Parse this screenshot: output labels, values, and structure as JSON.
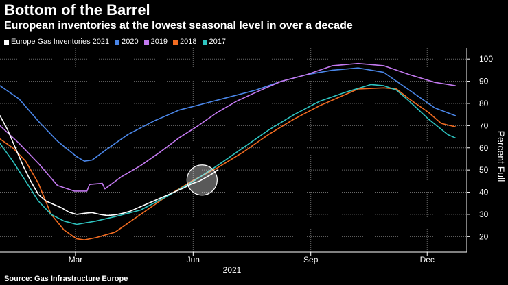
{
  "chart_data": {
    "type": "line",
    "title": "Bottom of the Barrel",
    "subtitle": "European inventories at the lowest seasonal level in over a decade",
    "xlabel": "2021",
    "ylabel": "Percent Full",
    "ylim": [
      13,
      105
    ],
    "xlim": [
      0,
      365
    ],
    "y_ticks": [
      20,
      30,
      40,
      50,
      60,
      70,
      80,
      90,
      100
    ],
    "x_ticks": [
      {
        "label": "Mar",
        "day": 59
      },
      {
        "label": "Jun",
        "day": 151
      },
      {
        "label": "Sep",
        "day": 243
      },
      {
        "label": "Dec",
        "day": 334
      }
    ],
    "source": "Source: Gas Infrastructure Europe",
    "annotation": {
      "type": "circle",
      "day": 158,
      "value": 45.5
    },
    "series": [
      {
        "name": "Europe Gas Inventories 2021",
        "color": "#ffffff",
        "points": [
          [
            0,
            74.5
          ],
          [
            6,
            68
          ],
          [
            12,
            60
          ],
          [
            18,
            52
          ],
          [
            24,
            45
          ],
          [
            30,
            39
          ],
          [
            36,
            36
          ],
          [
            42,
            34.5
          ],
          [
            48,
            33
          ],
          [
            54,
            31
          ],
          [
            60,
            30
          ],
          [
            66,
            30.5
          ],
          [
            72,
            30.8
          ],
          [
            78,
            30
          ],
          [
            84,
            29.5
          ],
          [
            90,
            29.8
          ],
          [
            96,
            30.5
          ],
          [
            102,
            31.5
          ],
          [
            108,
            33
          ],
          [
            114,
            34.5
          ],
          [
            120,
            36
          ],
          [
            126,
            37.5
          ],
          [
            132,
            39
          ],
          [
            138,
            40.5
          ],
          [
            144,
            42
          ],
          [
            150,
            43.8
          ],
          [
            156,
            45
          ],
          [
            162,
            47
          ],
          [
            168,
            49
          ],
          [
            170,
            50
          ]
        ]
      },
      {
        "name": "2020",
        "color": "#4a86e8",
        "points": [
          [
            0,
            88
          ],
          [
            15,
            82
          ],
          [
            30,
            72
          ],
          [
            45,
            63
          ],
          [
            60,
            56
          ],
          [
            66,
            54
          ],
          [
            72,
            54.5
          ],
          [
            85,
            60
          ],
          [
            100,
            66
          ],
          [
            120,
            72
          ],
          [
            140,
            77
          ],
          [
            160,
            80
          ],
          [
            180,
            83
          ],
          [
            200,
            86
          ],
          [
            220,
            90
          ],
          [
            240,
            93
          ],
          [
            260,
            95
          ],
          [
            280,
            96
          ],
          [
            300,
            94
          ],
          [
            320,
            86
          ],
          [
            340,
            78
          ],
          [
            356,
            74.5
          ]
        ]
      },
      {
        "name": "2019",
        "color": "#c379f0",
        "points": [
          [
            0,
            70
          ],
          [
            15,
            62
          ],
          [
            30,
            53
          ],
          [
            45,
            43
          ],
          [
            58,
            40.5
          ],
          [
            68,
            40.5
          ],
          [
            70,
            43.5
          ],
          [
            80,
            44
          ],
          [
            82,
            41.5
          ],
          [
            95,
            47
          ],
          [
            110,
            52
          ],
          [
            125,
            58
          ],
          [
            140,
            64.5
          ],
          [
            155,
            70
          ],
          [
            170,
            76
          ],
          [
            185,
            81
          ],
          [
            200,
            85
          ],
          [
            220,
            90
          ],
          [
            240,
            93
          ],
          [
            260,
            97
          ],
          [
            280,
            98
          ],
          [
            300,
            97
          ],
          [
            320,
            93
          ],
          [
            340,
            89.5
          ],
          [
            356,
            88
          ]
        ]
      },
      {
        "name": "2018",
        "color": "#f26c21",
        "points": [
          [
            0,
            64
          ],
          [
            10,
            60
          ],
          [
            20,
            54
          ],
          [
            30,
            44
          ],
          [
            40,
            30
          ],
          [
            50,
            23
          ],
          [
            60,
            19
          ],
          [
            66,
            18.5
          ],
          [
            75,
            19.5
          ],
          [
            90,
            22
          ],
          [
            110,
            30
          ],
          [
            130,
            38
          ],
          [
            150,
            45
          ],
          [
            170,
            51
          ],
          [
            190,
            58
          ],
          [
            210,
            66
          ],
          [
            230,
            73
          ],
          [
            250,
            79
          ],
          [
            270,
            84
          ],
          [
            280,
            86.5
          ],
          [
            300,
            87
          ],
          [
            310,
            86.5
          ],
          [
            320,
            82
          ],
          [
            335,
            76
          ],
          [
            345,
            71
          ],
          [
            356,
            69.5
          ]
        ]
      },
      {
        "name": "2017",
        "color": "#2ec4c0",
        "points": [
          [
            0,
            62
          ],
          [
            10,
            54
          ],
          [
            20,
            45
          ],
          [
            30,
            36
          ],
          [
            40,
            30
          ],
          [
            50,
            27
          ],
          [
            60,
            25.5
          ],
          [
            75,
            27
          ],
          [
            90,
            29
          ],
          [
            110,
            32
          ],
          [
            130,
            38
          ],
          [
            150,
            44.5
          ],
          [
            170,
            52
          ],
          [
            190,
            60
          ],
          [
            210,
            68
          ],
          [
            230,
            75
          ],
          [
            250,
            81
          ],
          [
            270,
            85
          ],
          [
            290,
            88.5
          ],
          [
            300,
            88
          ],
          [
            310,
            86
          ],
          [
            320,
            81
          ],
          [
            335,
            73
          ],
          [
            350,
            66
          ],
          [
            356,
            64.5
          ]
        ]
      }
    ]
  }
}
